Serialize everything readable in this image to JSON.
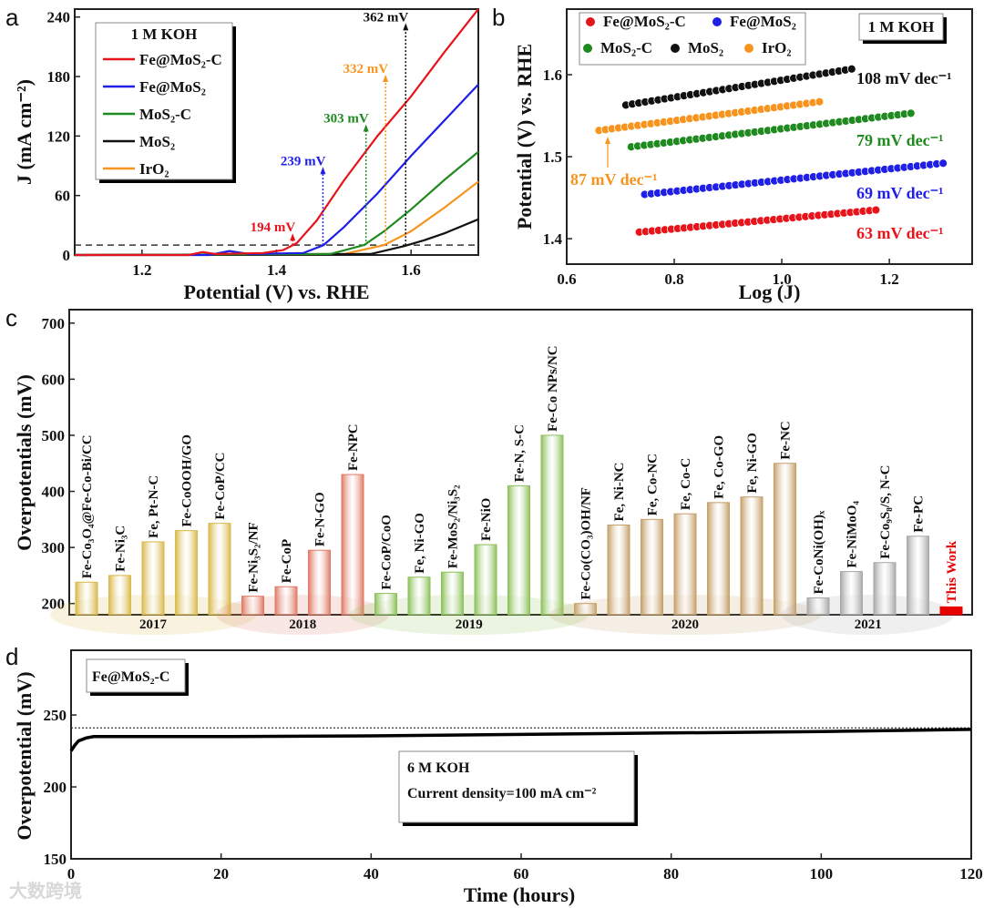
{
  "watermark": "大数跨境",
  "chart_data": [
    {
      "panel": "a",
      "type": "line",
      "xlabel": "Potential (V) vs. RHE",
      "ylabel": "J (mA cm⁻²)",
      "xlim": [
        1.1,
        1.7
      ],
      "ylim": [
        0,
        248
      ],
      "xticks": [
        1.2,
        1.4,
        1.6
      ],
      "yticks": [
        0,
        60,
        120,
        180,
        240
      ],
      "legend_title": "1 M KOH",
      "legend_placement": "top-left",
      "reference_line": {
        "y": 10,
        "style": "dashed"
      },
      "series": [
        {
          "name": "Fe@MoS₂-C",
          "color": "#e8141b",
          "x": [
            1.1,
            1.27,
            1.29,
            1.31,
            1.38,
            1.41,
            1.43,
            1.46,
            1.5,
            1.55,
            1.6,
            1.65,
            1.7
          ],
          "y": [
            0,
            0,
            3,
            1,
            2,
            5,
            12,
            35,
            75,
            120,
            160,
            205,
            248
          ]
        },
        {
          "name": "Fe@MoS₂",
          "color": "#1f1fe6",
          "x": [
            1.1,
            1.3,
            1.33,
            1.36,
            1.44,
            1.47,
            1.5,
            1.55,
            1.6,
            1.65,
            1.7
          ],
          "y": [
            0,
            0,
            4,
            1,
            2,
            10,
            28,
            62,
            100,
            136,
            172
          ]
        },
        {
          "name": "MoS₂-C",
          "color": "#1f8a1f",
          "x": [
            1.1,
            1.48,
            1.53,
            1.56,
            1.6,
            1.65,
            1.7
          ],
          "y": [
            0,
            1,
            10,
            24,
            46,
            76,
            104
          ]
        },
        {
          "name": "MoS₂",
          "color": "#111111",
          "x": [
            1.1,
            1.54,
            1.59,
            1.62,
            1.65,
            1.7
          ],
          "y": [
            0,
            1,
            9,
            15,
            22,
            36
          ]
        },
        {
          "name": "IrO₂",
          "color": "#f7941d",
          "x": [
            1.1,
            1.5,
            1.56,
            1.6,
            1.65,
            1.7
          ],
          "y": [
            0,
            1,
            10,
            24,
            48,
            74
          ]
        }
      ],
      "annotations": [
        {
          "text": "194 mV",
          "color": "#e8141b",
          "x": 1.424,
          "arrow_to": 20
        },
        {
          "text": "239 mV",
          "color": "#1f1fe6",
          "x": 1.469,
          "arrow_to": 87
        },
        {
          "text": "303 mV",
          "color": "#1f8a1f",
          "x": 1.533,
          "arrow_to": 130
        },
        {
          "text": "332 mV",
          "color": "#f7941d",
          "x": 1.562,
          "arrow_to": 180
        },
        {
          "text": "362 mV",
          "color": "#111111",
          "x": 1.592,
          "arrow_to": 232
        }
      ]
    },
    {
      "panel": "b",
      "type": "scatter",
      "xlabel": "Log (J)",
      "ylabel": "Potential (V) vs. RHE",
      "xlim": [
        0.6,
        1.354
      ],
      "ylim": [
        1.369,
        1.68
      ],
      "xticks": [
        0.6,
        0.8,
        1.0,
        1.2
      ],
      "yticks": [
        1.4,
        1.5,
        1.6
      ],
      "legend_placement": "top-left",
      "box_label": "1 M KOH",
      "series": [
        {
          "name": "Fe@MoS₂-C",
          "color": "#e8141b",
          "x_range": [
            0.735,
            1.175
          ],
          "y_range": [
            1.408,
            1.435
          ],
          "slope_label": "63 mV dec⁻¹"
        },
        {
          "name": "Fe@MoS₂",
          "color": "#1f1fe6",
          "x_range": [
            0.745,
            1.3
          ],
          "y_range": [
            1.454,
            1.492
          ],
          "slope_label": "69 mV dec⁻¹"
        },
        {
          "name": "MoS₂-C",
          "color": "#1f8a1f",
          "x_range": [
            0.72,
            1.24
          ],
          "y_range": [
            1.512,
            1.553
          ],
          "slope_label": "79 mV dec⁻¹"
        },
        {
          "name": "MoS₂",
          "color": "#111111",
          "x_range": [
            0.71,
            1.13
          ],
          "y_range": [
            1.563,
            1.607
          ],
          "slope_label": "108 mV dec⁻¹"
        },
        {
          "name": "IrO₂",
          "color": "#f7941d",
          "x_range": [
            0.66,
            1.07
          ],
          "y_range": [
            1.532,
            1.567
          ],
          "slope_label": "87 mV dec⁻¹"
        }
      ]
    },
    {
      "panel": "c",
      "type": "bar",
      "ylabel": "Overpotentials (mV)",
      "ylim": [
        180,
        724
      ],
      "yticks": [
        200,
        300,
        400,
        500,
        600,
        700
      ],
      "groups": [
        {
          "year": "2017",
          "color": "#d9b94a",
          "bars": [
            [
              "Fe-Co₃O₄@Fe-Co-Bi/CC",
              238
            ],
            [
              "Fe-Ni₃C",
              250
            ],
            [
              "Fe, Pt-N-C",
              310
            ],
            [
              "Fe-CoOOH/GO",
              330
            ],
            [
              "Fe-CoP/CC",
              343
            ]
          ]
        },
        {
          "year": "2018",
          "color": "#e07a65",
          "bars": [
            [
              "Fe-Ni₃S₂/NF",
              213
            ],
            [
              "Fe-CoP",
              230
            ],
            [
              "Fe-N-GO",
              295
            ],
            [
              "Fe-NPC",
              430
            ]
          ]
        },
        {
          "year": "2019",
          "color": "#8cc15a",
          "bars": [
            [
              "Fe-CoP/CoO",
              218
            ],
            [
              "Fe, Ni-GO",
              247
            ],
            [
              "Fe-MoS₂/Ni₃S₂",
              256
            ],
            [
              "Fe-NiO",
              305
            ],
            [
              "Fe-N, S-C",
              410
            ],
            [
              "Fe-Co NPs/NC",
              500
            ]
          ]
        },
        {
          "year": "2020",
          "color": "#c6a06a",
          "bars": [
            [
              "Fe-Co(CO₃)OH/NF",
              200
            ],
            [
              "Fe, Ni-NC",
              340
            ],
            [
              "Fe, Co-NC",
              350
            ],
            [
              "Fe, Co-C",
              360
            ],
            [
              "Fe, Co-GO",
              380
            ],
            [
              "Fe, Ni-GO",
              390
            ],
            [
              "Fe-NC",
              450
            ]
          ]
        },
        {
          "year": "2021",
          "color": "#a8a8a8",
          "bars": [
            [
              "Fe-CoNi(OH)ₓ",
              210
            ],
            [
              "Fe-NiMoO₄",
              257
            ],
            [
              "Fe-Co₉S₈/S, N-C",
              273
            ],
            [
              "Fe-PC",
              320
            ]
          ]
        },
        {
          "year": "",
          "color": "#e60000",
          "bars": [
            [
              "This Work",
              194
            ]
          ]
        }
      ]
    },
    {
      "panel": "d",
      "type": "line",
      "xlabel": "Time (hours)",
      "ylabel": "Overpotential (mV)",
      "xlim": [
        0,
        120
      ],
      "ylim": [
        150,
        295
      ],
      "xticks": [
        0,
        20,
        40,
        60,
        80,
        100,
        120
      ],
      "yticks": [
        150,
        200,
        250
      ],
      "reference_line": {
        "y": 241,
        "style": "dotted"
      },
      "series": [
        {
          "name": "Fe@MoS₂-C",
          "color": "#000000",
          "x": [
            0,
            0.5,
            1,
            2,
            3,
            5,
            20,
            40,
            60,
            80,
            100,
            120
          ],
          "y": [
            225,
            229,
            232,
            234,
            235,
            235,
            235,
            235.5,
            236.5,
            237.5,
            238.5,
            240
          ]
        }
      ],
      "box_label": "Fe@MoS₂-C",
      "condition_label": "6 M KOH",
      "current_label": "Current density=100 mA cm⁻²"
    }
  ]
}
